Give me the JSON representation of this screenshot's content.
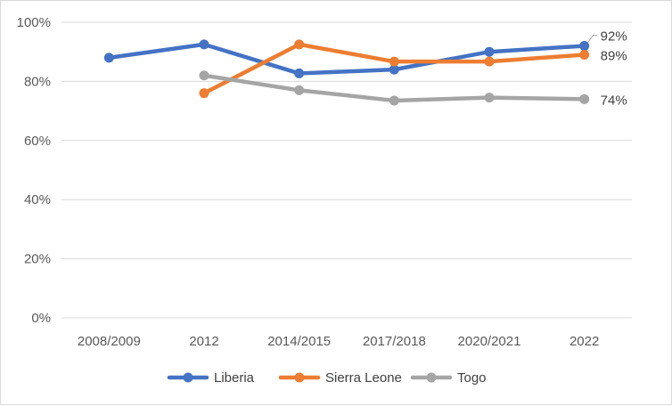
{
  "chart_data": {
    "type": "line",
    "categories": [
      "2008/2009",
      "2012",
      "2014/2015",
      "2017/2018",
      "2020/2021",
      "2022"
    ],
    "ylim": [
      0,
      100
    ],
    "y_ticks": [
      "0%",
      "20%",
      "40%",
      "60%",
      "80%",
      "100%"
    ],
    "y_tick_values": [
      0,
      20,
      40,
      60,
      80,
      100
    ],
    "grid": true,
    "legend_position": "bottom",
    "series": [
      {
        "name": "Liberia",
        "color": "#4472c4",
        "values": [
          88,
          92.5,
          82.7,
          84,
          90,
          92
        ],
        "end_label": "92%"
      },
      {
        "name": "Sierra Leone",
        "color": "#ed7d31",
        "values": [
          null,
          76,
          92.5,
          86.7,
          86.7,
          89
        ],
        "end_label": "89%"
      },
      {
        "name": "Togo",
        "color": "#a5a5a5",
        "values": [
          null,
          82,
          77,
          73.5,
          74.5,
          74
        ],
        "end_label": "74%"
      }
    ]
  }
}
